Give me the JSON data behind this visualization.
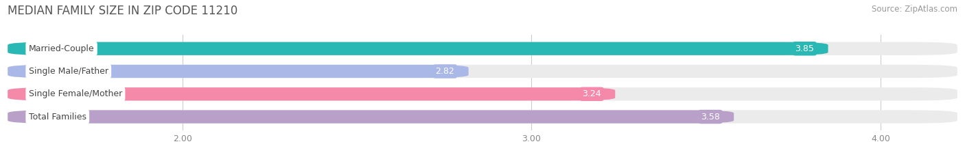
{
  "title": "MEDIAN FAMILY SIZE IN ZIP CODE 11210",
  "source": "Source: ZipAtlas.com",
  "categories": [
    "Married-Couple",
    "Single Male/Father",
    "Single Female/Mother",
    "Total Families"
  ],
  "values": [
    3.85,
    2.82,
    3.24,
    3.58
  ],
  "bar_colors": [
    "#29b8b3",
    "#aab8e8",
    "#f589aa",
    "#b8a0c8"
  ],
  "xlim": [
    1.5,
    4.22
  ],
  "xticks": [
    2.0,
    3.0,
    4.0
  ],
  "xtick_labels": [
    "2.00",
    "3.00",
    "4.00"
  ],
  "background_color": "#ffffff",
  "bar_bg_color": "#ebebeb",
  "title_fontsize": 12,
  "source_fontsize": 8.5,
  "bar_height": 0.58,
  "value_fontsize": 9,
  "label_fontsize": 9
}
